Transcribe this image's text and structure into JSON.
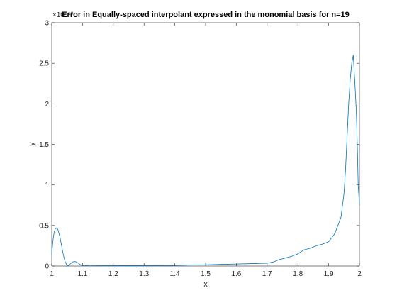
{
  "chart_data": {
    "type": "line",
    "title": "Error in Equally-spaced interpolant  expressed in the monomial basis for n=19",
    "xlabel": "x",
    "ylabel": "y",
    "y_exponent_label": "×10⁻¹⁰",
    "xlim": [
      1,
      2
    ],
    "ylim": [
      0,
      3
    ],
    "xticks": [
      1,
      1.1,
      1.2,
      1.3,
      1.4,
      1.5,
      1.6,
      1.7,
      1.8,
      1.9,
      2
    ],
    "xtick_labels": [
      "1",
      "1.1",
      "1.2",
      "1.3",
      "1.4",
      "1.5",
      "1.6",
      "1.7",
      "1.8",
      "1.9",
      "2"
    ],
    "yticks": [
      0,
      0.5,
      1,
      1.5,
      2,
      2.5,
      3
    ],
    "ytick_labels": [
      "0",
      "0.5",
      "1",
      "1.5",
      "2",
      "2.5",
      "3"
    ],
    "grid": false,
    "legend": "none",
    "series": [
      {
        "color": "#0072BD",
        "x": [
          1.0,
          1.004,
          1.008,
          1.012,
          1.016,
          1.02,
          1.024,
          1.028,
          1.032,
          1.036,
          1.04,
          1.044,
          1.048,
          1.052,
          1.056,
          1.06,
          1.064,
          1.068,
          1.072,
          1.076,
          1.08,
          1.084,
          1.088,
          1.092,
          1.096,
          1.1,
          1.104,
          1.108,
          1.112,
          1.116,
          1.12,
          1.15,
          1.2,
          1.25,
          1.3,
          1.35,
          1.4,
          1.45,
          1.5,
          1.55,
          1.6,
          1.65,
          1.7,
          1.72,
          1.74,
          1.76,
          1.78,
          1.8,
          1.82,
          1.84,
          1.86,
          1.88,
          1.9,
          1.91,
          1.92,
          1.93,
          1.94,
          1.95,
          1.955,
          1.96,
          1.965,
          1.97,
          1.975,
          1.98,
          1.983,
          1.986,
          1.99,
          1.993,
          1.996,
          2.0
        ],
        "y": [
          0.15,
          0.32,
          0.42,
          0.46,
          0.47,
          0.45,
          0.4,
          0.33,
          0.25,
          0.17,
          0.1,
          0.05,
          0.02,
          0.005,
          0.01,
          0.025,
          0.04,
          0.05,
          0.055,
          0.055,
          0.05,
          0.04,
          0.03,
          0.02,
          0.01,
          0.005,
          0.003,
          0.004,
          0.006,
          0.008,
          0.009,
          0.008,
          0.006,
          0.005,
          0.006,
          0.007,
          0.008,
          0.012,
          0.015,
          0.02,
          0.025,
          0.03,
          0.035,
          0.05,
          0.08,
          0.1,
          0.12,
          0.15,
          0.2,
          0.22,
          0.25,
          0.27,
          0.3,
          0.35,
          0.4,
          0.5,
          0.6,
          0.9,
          1.2,
          1.6,
          2.0,
          2.3,
          2.5,
          2.6,
          2.4,
          2.2,
          1.9,
          1.5,
          1.0,
          0.75
        ]
      }
    ]
  }
}
